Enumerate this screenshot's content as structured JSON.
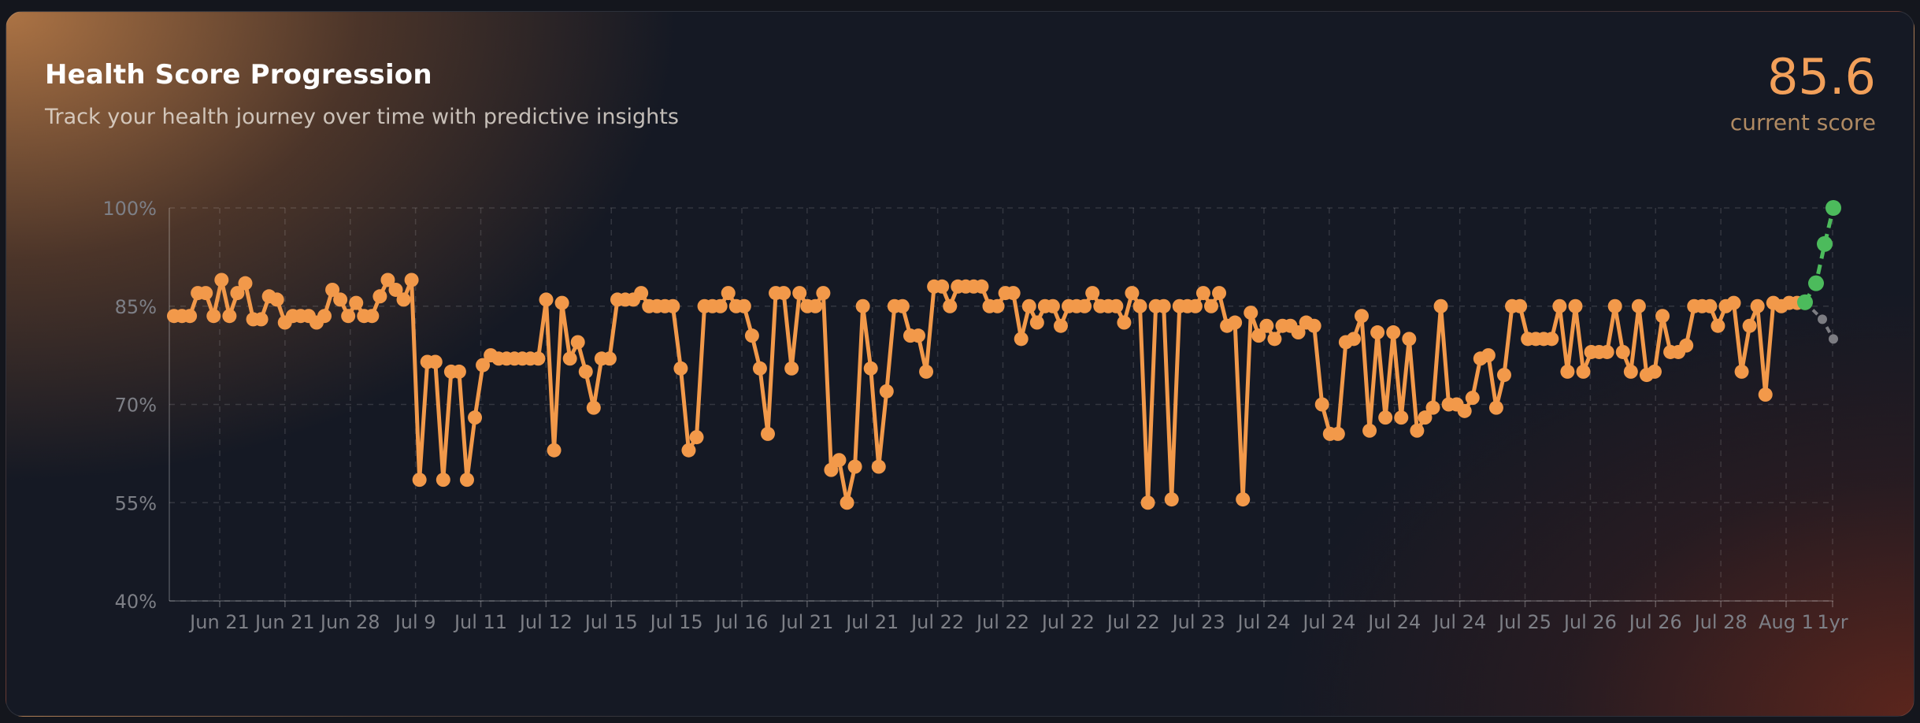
{
  "header": {
    "title": "Health Score Progression",
    "subtitle": "Track your health journey over time with predictive insights",
    "score_value": "85.6",
    "score_label": "current score"
  },
  "colors": {
    "line": "#f2994a",
    "prediction": "#4cbb5c",
    "baseline": "#7c7c82",
    "grid": "rgba(255,255,255,0.13)",
    "tick_text": "#7d7f86"
  },
  "chart_data": {
    "type": "line",
    "title": "Health Score Progression",
    "ylim": [
      40,
      100
    ],
    "yticks": [
      40,
      55,
      70,
      85,
      100
    ],
    "ytick_labels": [
      "40%",
      "55%",
      "70%",
      "85%",
      "100%"
    ],
    "grid": true,
    "x_tick_labels": [
      "Jun 21",
      "Jun 21",
      "Jun 28",
      "Jul 9",
      "Jul 11",
      "Jul 12",
      "Jul 15",
      "Jul 15",
      "Jul 16",
      "Jul 21",
      "Jul 21",
      "Jul 22",
      "Jul 22",
      "Jul 22",
      "Jul 22",
      "Jul 23",
      "Jul 24",
      "Jul 24",
      "Jul 24",
      "Jul 24",
      "Jul 25",
      "Jul 26",
      "Jul 26",
      "Jul 28",
      "Aug 1",
      "1yr"
    ],
    "series": [
      {
        "role": "history",
        "values": [
          83.5,
          83.5,
          83.5,
          87,
          87,
          83.5,
          89,
          83.5,
          87,
          88.5,
          83,
          83,
          86.5,
          86,
          82.5,
          83.5,
          83.5,
          83.5,
          82.5,
          83.5,
          87.5,
          86,
          83.5,
          85.5,
          83.5,
          83.5,
          86.5,
          89,
          87.5,
          86,
          89,
          58.5,
          76.5,
          76.5,
          58.5,
          75,
          75,
          58.5,
          68,
          76,
          77.5,
          77,
          77,
          77,
          77,
          77,
          77,
          86,
          63,
          85.5,
          77,
          79.5,
          75,
          69.5,
          77,
          77,
          86,
          86,
          86,
          87,
          85,
          85,
          85,
          85,
          75.5,
          63,
          65,
          85,
          85,
          85,
          87,
          85,
          85,
          80.5,
          75.5,
          65.5,
          87,
          87,
          75.5,
          87,
          85,
          85,
          87,
          60,
          61.5,
          55,
          60.5,
          85,
          75.5,
          60.5,
          72,
          85,
          85,
          80.5,
          80.5,
          75,
          88,
          88,
          85,
          88,
          88,
          88,
          88,
          85,
          85,
          87,
          87,
          80,
          85,
          82.5,
          85,
          85,
          82,
          85,
          85,
          85,
          87,
          85,
          85,
          85,
          82.5,
          87,
          85,
          55,
          85,
          85,
          55.5,
          85,
          85,
          85,
          87,
          85,
          87,
          82,
          82.5,
          55.5,
          84,
          80.5,
          82,
          80,
          82,
          82,
          81,
          82.5,
          82,
          70,
          65.5,
          65.5,
          79.5,
          80,
          83.5,
          66,
          81,
          68,
          81,
          68,
          80,
          66,
          68,
          69.5,
          85,
          70,
          70,
          69,
          71,
          77,
          77.5,
          69.5,
          74.5,
          85,
          85,
          80,
          80,
          80,
          80,
          85,
          75,
          85,
          75,
          78,
          78,
          78,
          85,
          78,
          75,
          85,
          74.5,
          75,
          83.5,
          78,
          78,
          79,
          85,
          85,
          85,
          82,
          85,
          85.5,
          75,
          82,
          85,
          71.5,
          85.5,
          85,
          85.5,
          85.5,
          85.5
        ]
      },
      {
        "role": "forecast",
        "values": [
          85.6,
          88.5,
          94.5,
          100
        ]
      },
      {
        "role": "baseline",
        "values": [
          85.6,
          83,
          80
        ]
      }
    ]
  }
}
